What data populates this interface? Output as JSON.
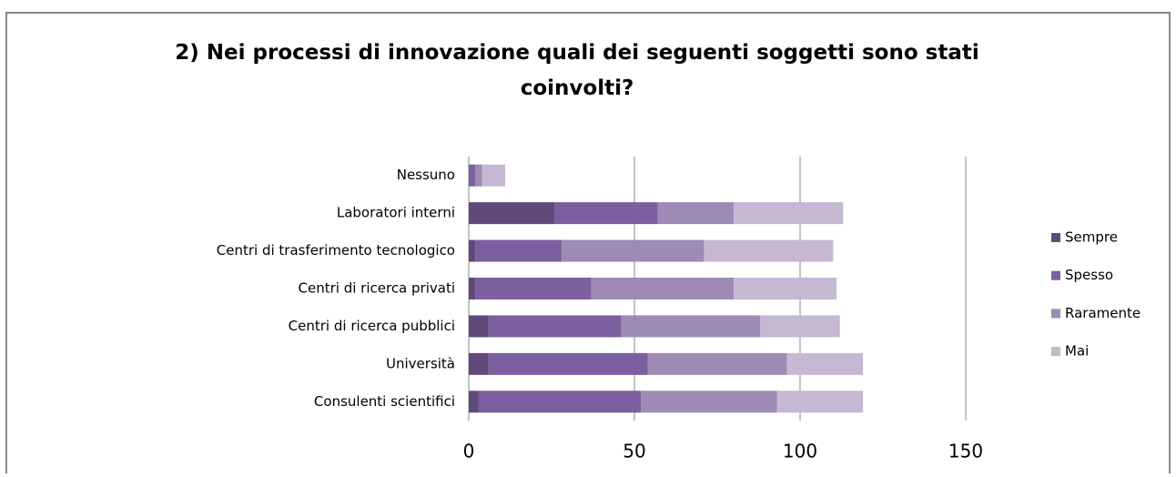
{
  "chart_data": {
    "type": "stacked_barh",
    "title": "2) Nei processi di innovazione quali dei seguenti soggetti sono stati coinvolti?",
    "categories": [
      "Nessuno",
      "Laboratori interni",
      "Centri di trasferimento tecnologico",
      "Centri di ricerca privati",
      "Centri di ricerca pubblici",
      "Università",
      "Consulenti scientifici"
    ],
    "series": [
      {
        "name": "Sempre",
        "color": "#604a7b",
        "values": [
          0,
          26,
          2,
          2,
          6,
          6,
          3
        ]
      },
      {
        "name": "Spesso",
        "color": "#7b5f9e",
        "values": [
          2,
          31,
          26,
          35,
          40,
          48,
          49
        ]
      },
      {
        "name": "Raramente",
        "color": "#9d8bb5",
        "values": [
          2,
          23,
          43,
          43,
          42,
          42,
          41
        ]
      },
      {
        "name": "Mai",
        "color": "#c4b8d3",
        "values": [
          7,
          33,
          39,
          31,
          24,
          23,
          26
        ]
      }
    ],
    "xlim": [
      0,
      150
    ],
    "xticks": [
      0,
      50,
      100,
      150
    ],
    "grid": true,
    "legend": "right"
  }
}
